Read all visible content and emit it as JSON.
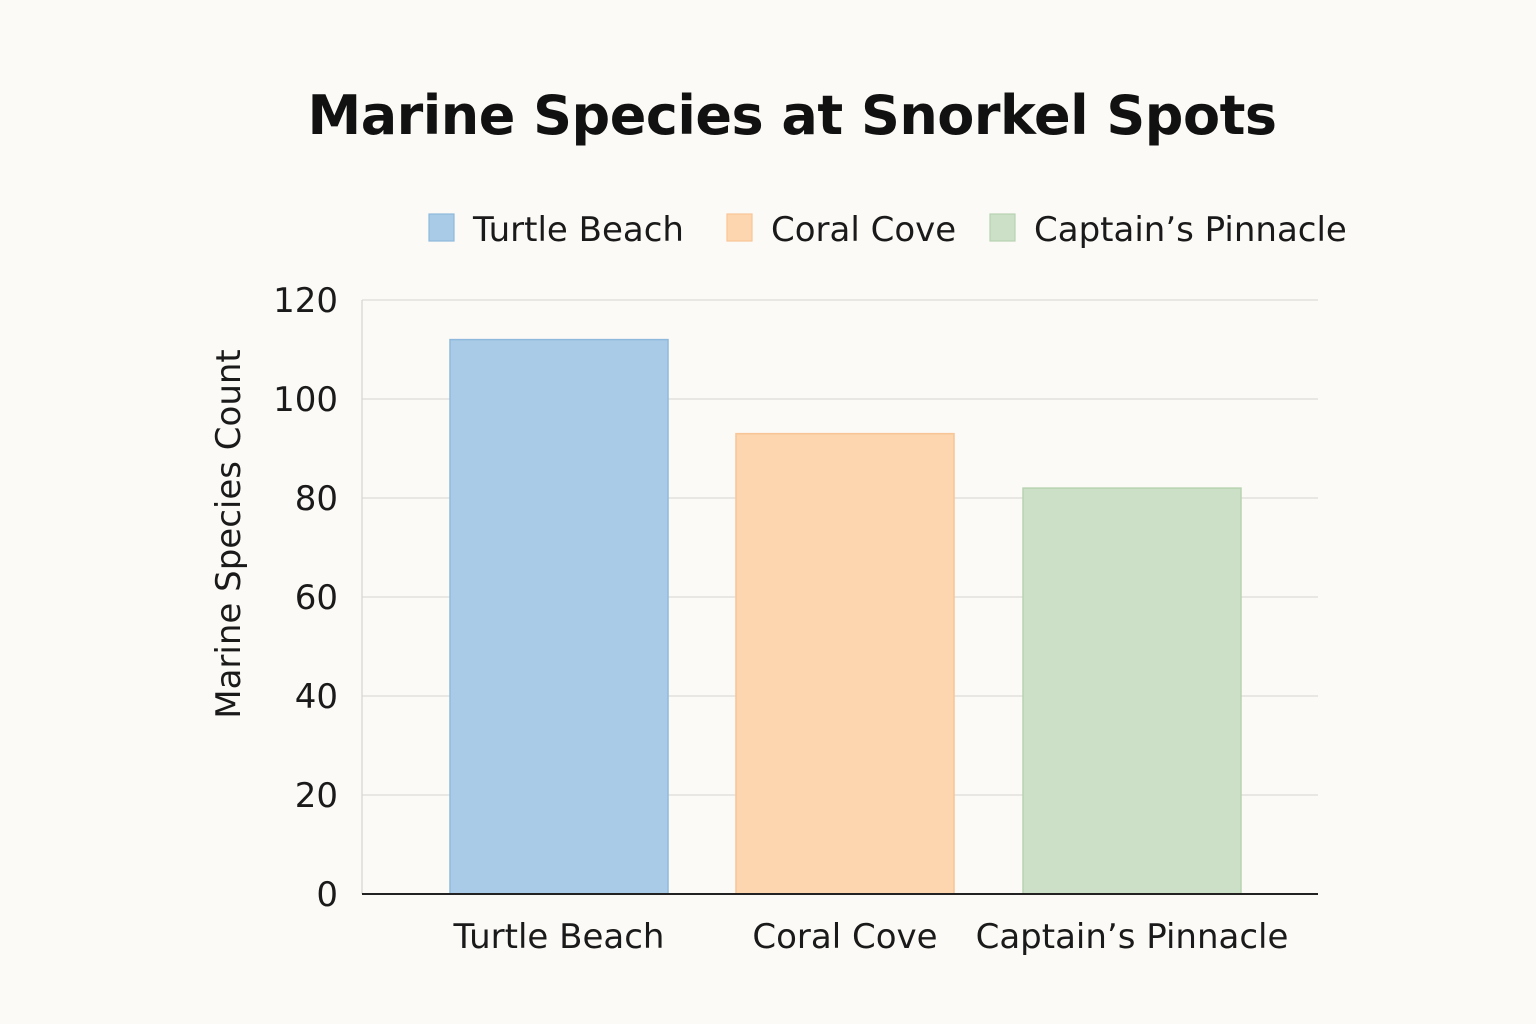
{
  "chart_data": {
    "type": "bar",
    "title": "Marine Species at Snorkel Spots",
    "xlabel": "",
    "ylabel": "Marine Species Count",
    "categories": [
      "Turtle Beach",
      "Coral Cove",
      "Captain’s Pinnacle"
    ],
    "values": [
      112,
      93,
      82
    ],
    "ylim": [
      0,
      120
    ],
    "yticks": [
      0,
      20,
      40,
      60,
      80,
      100,
      120
    ],
    "grid": true,
    "legend": {
      "placement": "top",
      "entries": [
        "Turtle Beach",
        "Coral Cove",
        "Captain’s Pinnacle"
      ]
    },
    "colors": [
      "#a9cbe7",
      "#fdd5ae",
      "#cce0c8"
    ],
    "border_colors": [
      "#8fb9dc",
      "#f7c596",
      "#b7d3b1"
    ]
  }
}
